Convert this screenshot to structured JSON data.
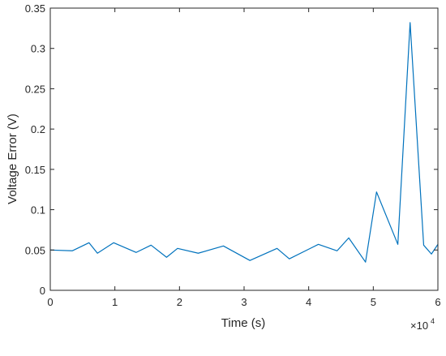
{
  "chart_data": {
    "type": "line",
    "title": "",
    "xlabel": "Time (s)",
    "ylabel": "Voltage Error (V)",
    "xlim": [
      0,
      60000
    ],
    "ylim": [
      0,
      0.35
    ],
    "x_ticks": [
      0,
      10000,
      20000,
      30000,
      40000,
      50000,
      60000
    ],
    "x_tick_labels": [
      "0",
      "1",
      "2",
      "3",
      "4",
      "5",
      "6"
    ],
    "x_exponent_base": "×10",
    "x_exponent_power": "4",
    "y_ticks": [
      0,
      0.05,
      0.1,
      0.15,
      0.2,
      0.25,
      0.3,
      0.35
    ],
    "y_tick_labels": [
      "0",
      "0.05",
      "0.1",
      "0.15",
      "0.2",
      "0.25",
      "0.3",
      "0.35"
    ],
    "grid": false,
    "line_color": "#0072BD",
    "series": [
      {
        "x": [
          0,
          3400,
          6000,
          7300,
          9800,
          13300,
          15600,
          18000,
          19700,
          22900,
          26800,
          30900,
          35100,
          37000,
          41500,
          44400,
          46200,
          48800,
          50500,
          53800,
          55700,
          57800,
          59000,
          60000
        ],
        "y": [
          0.05,
          0.049,
          0.059,
          0.046,
          0.059,
          0.047,
          0.056,
          0.041,
          0.052,
          0.046,
          0.055,
          0.037,
          0.052,
          0.039,
          0.057,
          0.049,
          0.065,
          0.035,
          0.122,
          0.057,
          0.332,
          0.056,
          0.045,
          0.057
        ]
      }
    ]
  }
}
